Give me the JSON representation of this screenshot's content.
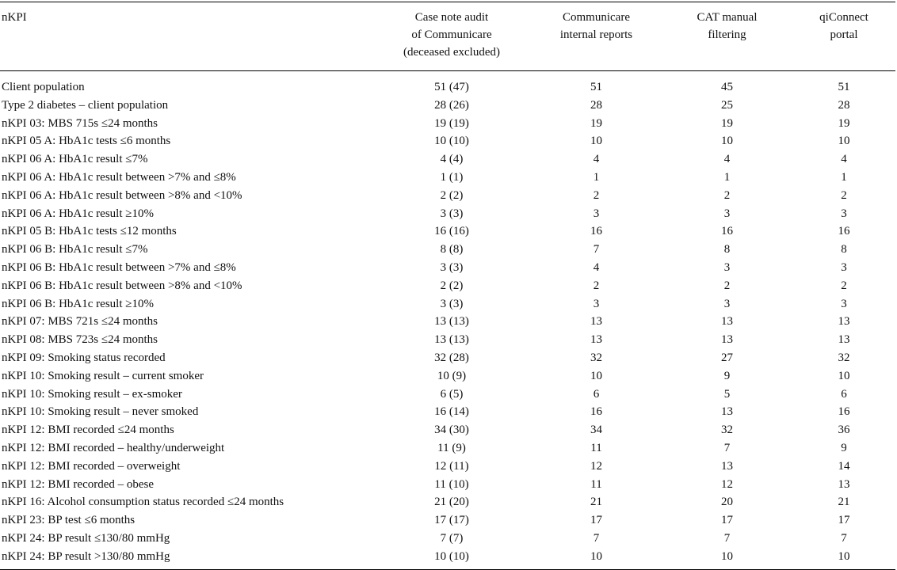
{
  "table": {
    "headers": [
      [
        "nKPI"
      ],
      [
        "Case note audit",
        "of Communicare",
        "(deceased excluded)"
      ],
      [
        "Communicare",
        "internal reports"
      ],
      [
        "CAT manual",
        "filtering"
      ],
      [
        "qiConnect",
        "portal"
      ]
    ],
    "rows": [
      [
        "Client population",
        "51 (47)",
        "51",
        "45",
        "51"
      ],
      [
        "Type 2 diabetes – client population",
        "28 (26)",
        "28",
        "25",
        "28"
      ],
      [
        "nKPI 03: MBS 715s ≤24 months",
        "19 (19)",
        "19",
        "19",
        "19"
      ],
      [
        "nKPI 05 A: HbA1c tests ≤6 months",
        "10 (10)",
        "10",
        "10",
        "10"
      ],
      [
        "nKPI 06 A: HbA1c result ≤7%",
        "4 (4)",
        "4",
        "4",
        "4"
      ],
      [
        "nKPI 06 A: HbA1c result between >7% and ≤8%",
        "1 (1)",
        "1",
        "1",
        "1"
      ],
      [
        "nKPI 06 A: HbA1c result between >8% and <10%",
        "2 (2)",
        "2",
        "2",
        "2"
      ],
      [
        "nKPI 06 A: HbA1c result ≥10%",
        "3 (3)",
        "3",
        "3",
        "3"
      ],
      [
        "nKPI 05 B: HbA1c tests ≤12 months",
        "16 (16)",
        "16",
        "16",
        "16"
      ],
      [
        "nKPI 06 B: HbA1c result ≤7%",
        "8 (8)",
        "7",
        "8",
        "8"
      ],
      [
        "nKPI 06 B: HbA1c result between >7% and ≤8%",
        "3 (3)",
        "4",
        "3",
        "3"
      ],
      [
        "nKPI 06 B: HbA1c result between >8% and <10%",
        "2 (2)",
        "2",
        "2",
        "2"
      ],
      [
        "nKPI 06 B: HbA1c result ≥10%",
        "3 (3)",
        "3",
        "3",
        "3"
      ],
      [
        "nKPI 07: MBS 721s ≤24 months",
        "13 (13)",
        "13",
        "13",
        "13"
      ],
      [
        "nKPI 08: MBS 723s ≤24 months",
        "13 (13)",
        "13",
        "13",
        "13"
      ],
      [
        "nKPI 09: Smoking status recorded",
        "32 (28)",
        "32",
        "27",
        "32"
      ],
      [
        "nKPI 10: Smoking result – current smoker",
        "10 (9)",
        "10",
        "9",
        "10"
      ],
      [
        "nKPI 10: Smoking result – ex-smoker",
        "6 (5)",
        "6",
        "5",
        "6"
      ],
      [
        "nKPI 10: Smoking result – never smoked",
        "16 (14)",
        "16",
        "13",
        "16"
      ],
      [
        "nKPI 12: BMI recorded ≤24 months",
        "34 (30)",
        "34",
        "32",
        "36"
      ],
      [
        "nKPI 12: BMI recorded – healthy/underweight",
        "11 (9)",
        "11",
        "7",
        "9"
      ],
      [
        "nKPI 12: BMI recorded – overweight",
        "12 (11)",
        "12",
        "13",
        "14"
      ],
      [
        "nKPI 12: BMI recorded – obese",
        "11 (10)",
        "11",
        "12",
        "13"
      ],
      [
        "nKPI 16: Alcohol consumption status recorded ≤24 months",
        "21 (20)",
        "21",
        "20",
        "21"
      ],
      [
        "nKPI 23: BP test ≤6 months",
        "17 (17)",
        "17",
        "17",
        "17"
      ],
      [
        "nKPI 24: BP result ≤130/80 mmHg",
        "7 (7)",
        "7",
        "7",
        "7"
      ],
      [
        "nKPI 24: BP result >130/80 mmHg",
        "10 (10)",
        "10",
        "10",
        "10"
      ]
    ]
  }
}
